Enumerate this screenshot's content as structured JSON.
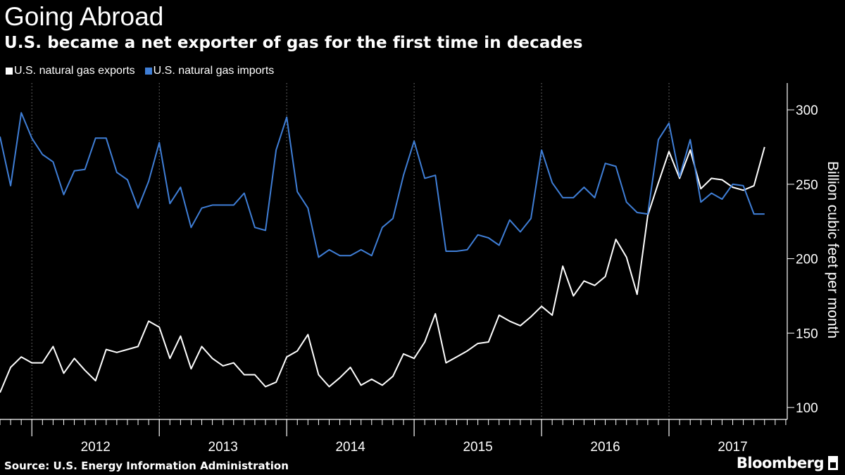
{
  "header": {
    "title": "Going Abroad",
    "subtitle": "U.S. became a net exporter of gas for the first time in decades"
  },
  "footer": {
    "source": "Source: U.S. Energy Information Administration",
    "brand": "Bloomberg"
  },
  "colors": {
    "background": "#000000",
    "exports": "#ffffff",
    "imports": "#3f7ed6",
    "grid": "#7a7a7a"
  },
  "chart_data": {
    "type": "line",
    "title": "Going Abroad",
    "subtitle": "U.S. became a net exporter of gas for the first time in decades",
    "ylabel": "Billion cubic feet per month",
    "xlabel": "",
    "ylim": [
      92,
      318
    ],
    "y_ticks": [
      100,
      150,
      200,
      250,
      300
    ],
    "x_start": "2011-10",
    "x_end": "2017-12",
    "x_tick_labels": [
      "2012",
      "2013",
      "2014",
      "2015",
      "2016",
      "2017"
    ],
    "legend_position": "top-left",
    "grid": "vertical dotted at year boundaries",
    "y_axis_side": "right",
    "series": [
      {
        "name": "U.S. natural gas exports",
        "color": "#ffffff",
        "x": [
          "2011-10",
          "2011-11",
          "2011-12",
          "2012-01",
          "2012-02",
          "2012-03",
          "2012-04",
          "2012-05",
          "2012-06",
          "2012-07",
          "2012-08",
          "2012-09",
          "2012-10",
          "2012-11",
          "2012-12",
          "2013-01",
          "2013-02",
          "2013-03",
          "2013-04",
          "2013-05",
          "2013-06",
          "2013-07",
          "2013-08",
          "2013-09",
          "2013-10",
          "2013-11",
          "2013-12",
          "2014-01",
          "2014-02",
          "2014-03",
          "2014-04",
          "2014-05",
          "2014-06",
          "2014-07",
          "2014-08",
          "2014-09",
          "2014-10",
          "2014-11",
          "2014-12",
          "2015-01",
          "2015-02",
          "2015-03",
          "2015-04",
          "2015-05",
          "2015-06",
          "2015-07",
          "2015-08",
          "2015-09",
          "2015-10",
          "2015-11",
          "2015-12",
          "2016-01",
          "2016-02",
          "2016-03",
          "2016-04",
          "2016-05",
          "2016-06",
          "2016-07",
          "2016-08",
          "2016-09",
          "2016-10",
          "2016-11",
          "2016-12",
          "2017-01",
          "2017-02",
          "2017-03",
          "2017-04",
          "2017-05",
          "2017-06",
          "2017-07",
          "2017-08",
          "2017-09"
        ],
        "values": [
          110,
          127,
          134,
          130,
          130,
          141,
          123,
          133,
          125,
          118,
          139,
          137,
          139,
          141,
          158,
          154,
          133,
          148,
          126,
          141,
          133,
          128,
          130,
          122,
          122,
          114,
          117,
          134,
          138,
          149,
          122,
          114,
          120,
          127,
          115,
          119,
          115,
          121,
          136,
          133,
          144,
          163,
          130,
          134,
          138,
          143,
          144,
          162,
          158,
          155,
          161,
          168,
          162,
          195,
          175,
          185,
          182,
          188,
          213,
          201,
          176,
          229,
          251,
          272,
          254,
          273,
          247,
          254,
          253,
          248,
          246,
          249
        ],
        "values_tail": [
          275
        ]
      },
      {
        "name": "U.S. natural gas imports",
        "color": "#3f7ed6",
        "x": [
          "2011-10",
          "2011-11",
          "2011-12",
          "2012-01",
          "2012-02",
          "2012-03",
          "2012-04",
          "2012-05",
          "2012-06",
          "2012-07",
          "2012-08",
          "2012-09",
          "2012-10",
          "2012-11",
          "2012-12",
          "2013-01",
          "2013-02",
          "2013-03",
          "2013-04",
          "2013-05",
          "2013-06",
          "2013-07",
          "2013-08",
          "2013-09",
          "2013-10",
          "2013-11",
          "2013-12",
          "2014-01",
          "2014-02",
          "2014-03",
          "2014-04",
          "2014-05",
          "2014-06",
          "2014-07",
          "2014-08",
          "2014-09",
          "2014-10",
          "2014-11",
          "2014-12",
          "2015-01",
          "2015-02",
          "2015-03",
          "2015-04",
          "2015-05",
          "2015-06",
          "2015-07",
          "2015-08",
          "2015-09",
          "2015-10",
          "2015-11",
          "2015-12",
          "2016-01",
          "2016-02",
          "2016-03",
          "2016-04",
          "2016-05",
          "2016-06",
          "2016-07",
          "2016-08",
          "2016-09",
          "2016-10",
          "2016-11",
          "2016-12",
          "2017-01",
          "2017-02",
          "2017-03",
          "2017-04",
          "2017-05",
          "2017-06",
          "2017-07",
          "2017-08",
          "2017-09"
        ],
        "values": [
          282,
          249,
          298,
          281,
          270,
          265,
          243,
          259,
          260,
          281,
          281,
          258,
          253,
          234,
          252,
          278,
          237,
          248,
          221,
          234,
          236,
          236,
          236,
          244,
          221,
          219,
          273,
          295,
          245,
          234,
          201,
          206,
          202,
          202,
          206,
          202,
          221,
          227,
          256,
          279,
          254,
          256,
          205,
          205,
          206,
          216,
          214,
          209,
          226,
          218,
          227,
          273,
          251,
          241,
          241,
          248,
          241,
          264,
          262,
          238,
          231,
          230,
          280,
          291,
          255,
          280,
          238,
          244,
          240,
          250,
          249,
          230
        ],
        "values_tail": [
          230
        ]
      }
    ]
  }
}
